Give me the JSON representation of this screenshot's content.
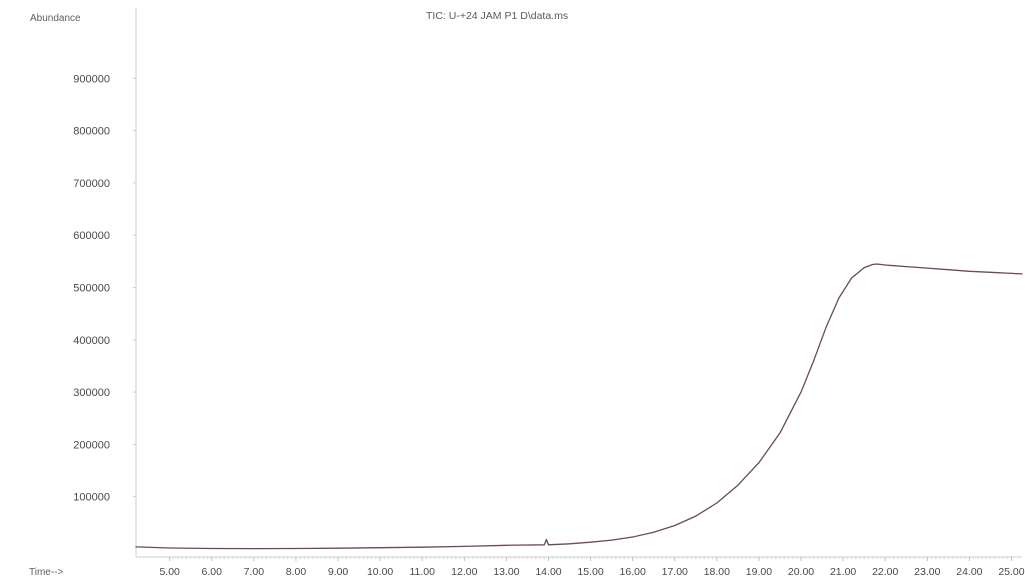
{
  "chart_data": {
    "type": "line",
    "title": "TIC: U-+24 JAM P1 D\\data.ms",
    "ylabel": "Abundance",
    "xlabel": "Time-->",
    "xlim": [
      4.2,
      25.25
    ],
    "ylim": [
      0,
      1000000
    ],
    "yticks": [
      100000,
      200000,
      300000,
      400000,
      500000,
      600000,
      700000,
      800000,
      900000
    ],
    "ytick_labels": [
      "100000",
      "200000",
      "300000",
      "400000",
      "500000",
      "600000",
      "700000",
      "800000",
      "900000"
    ],
    "xticks": [
      5,
      6,
      7,
      8,
      9,
      10,
      11,
      12,
      13,
      14,
      15,
      16,
      17,
      18,
      19,
      20,
      21,
      22,
      23,
      24,
      25
    ],
    "xtick_labels": [
      "5.00",
      "6.00",
      "7.00",
      "8.00",
      "9.00",
      "10.00",
      "11.00",
      "12.00",
      "13.00",
      "14.00",
      "15.00",
      "16.00",
      "17.00",
      "18.00",
      "19.00",
      "20.00",
      "21.00",
      "22.00",
      "23.00",
      "24.00",
      "25.00"
    ],
    "grid": false,
    "series": [
      {
        "color": "#6b4a55",
        "x": [
          4.2,
          5.0,
          6.0,
          7.0,
          8.0,
          9.0,
          10.0,
          11.0,
          12.0,
          13.0,
          13.9,
          13.95,
          14.0,
          14.5,
          15.0,
          15.5,
          16.0,
          16.5,
          17.0,
          17.5,
          18.0,
          18.5,
          19.0,
          19.5,
          20.0,
          20.3,
          20.6,
          20.9,
          21.2,
          21.5,
          21.7,
          21.8,
          22.0,
          22.5,
          23.0,
          23.5,
          24.0,
          24.5,
          25.0,
          25.25
        ],
        "y": [
          4000,
          2000,
          1000,
          800,
          1000,
          1500,
          2500,
          3500,
          5000,
          7000,
          8000,
          18000,
          8000,
          10000,
          13000,
          17000,
          23000,
          32000,
          45000,
          63000,
          88000,
          122000,
          165000,
          222000,
          300000,
          360000,
          425000,
          480000,
          518000,
          538000,
          544000,
          545000,
          543000,
          540000,
          537000,
          534000,
          531000,
          529000,
          527000,
          526000
        ]
      }
    ]
  }
}
